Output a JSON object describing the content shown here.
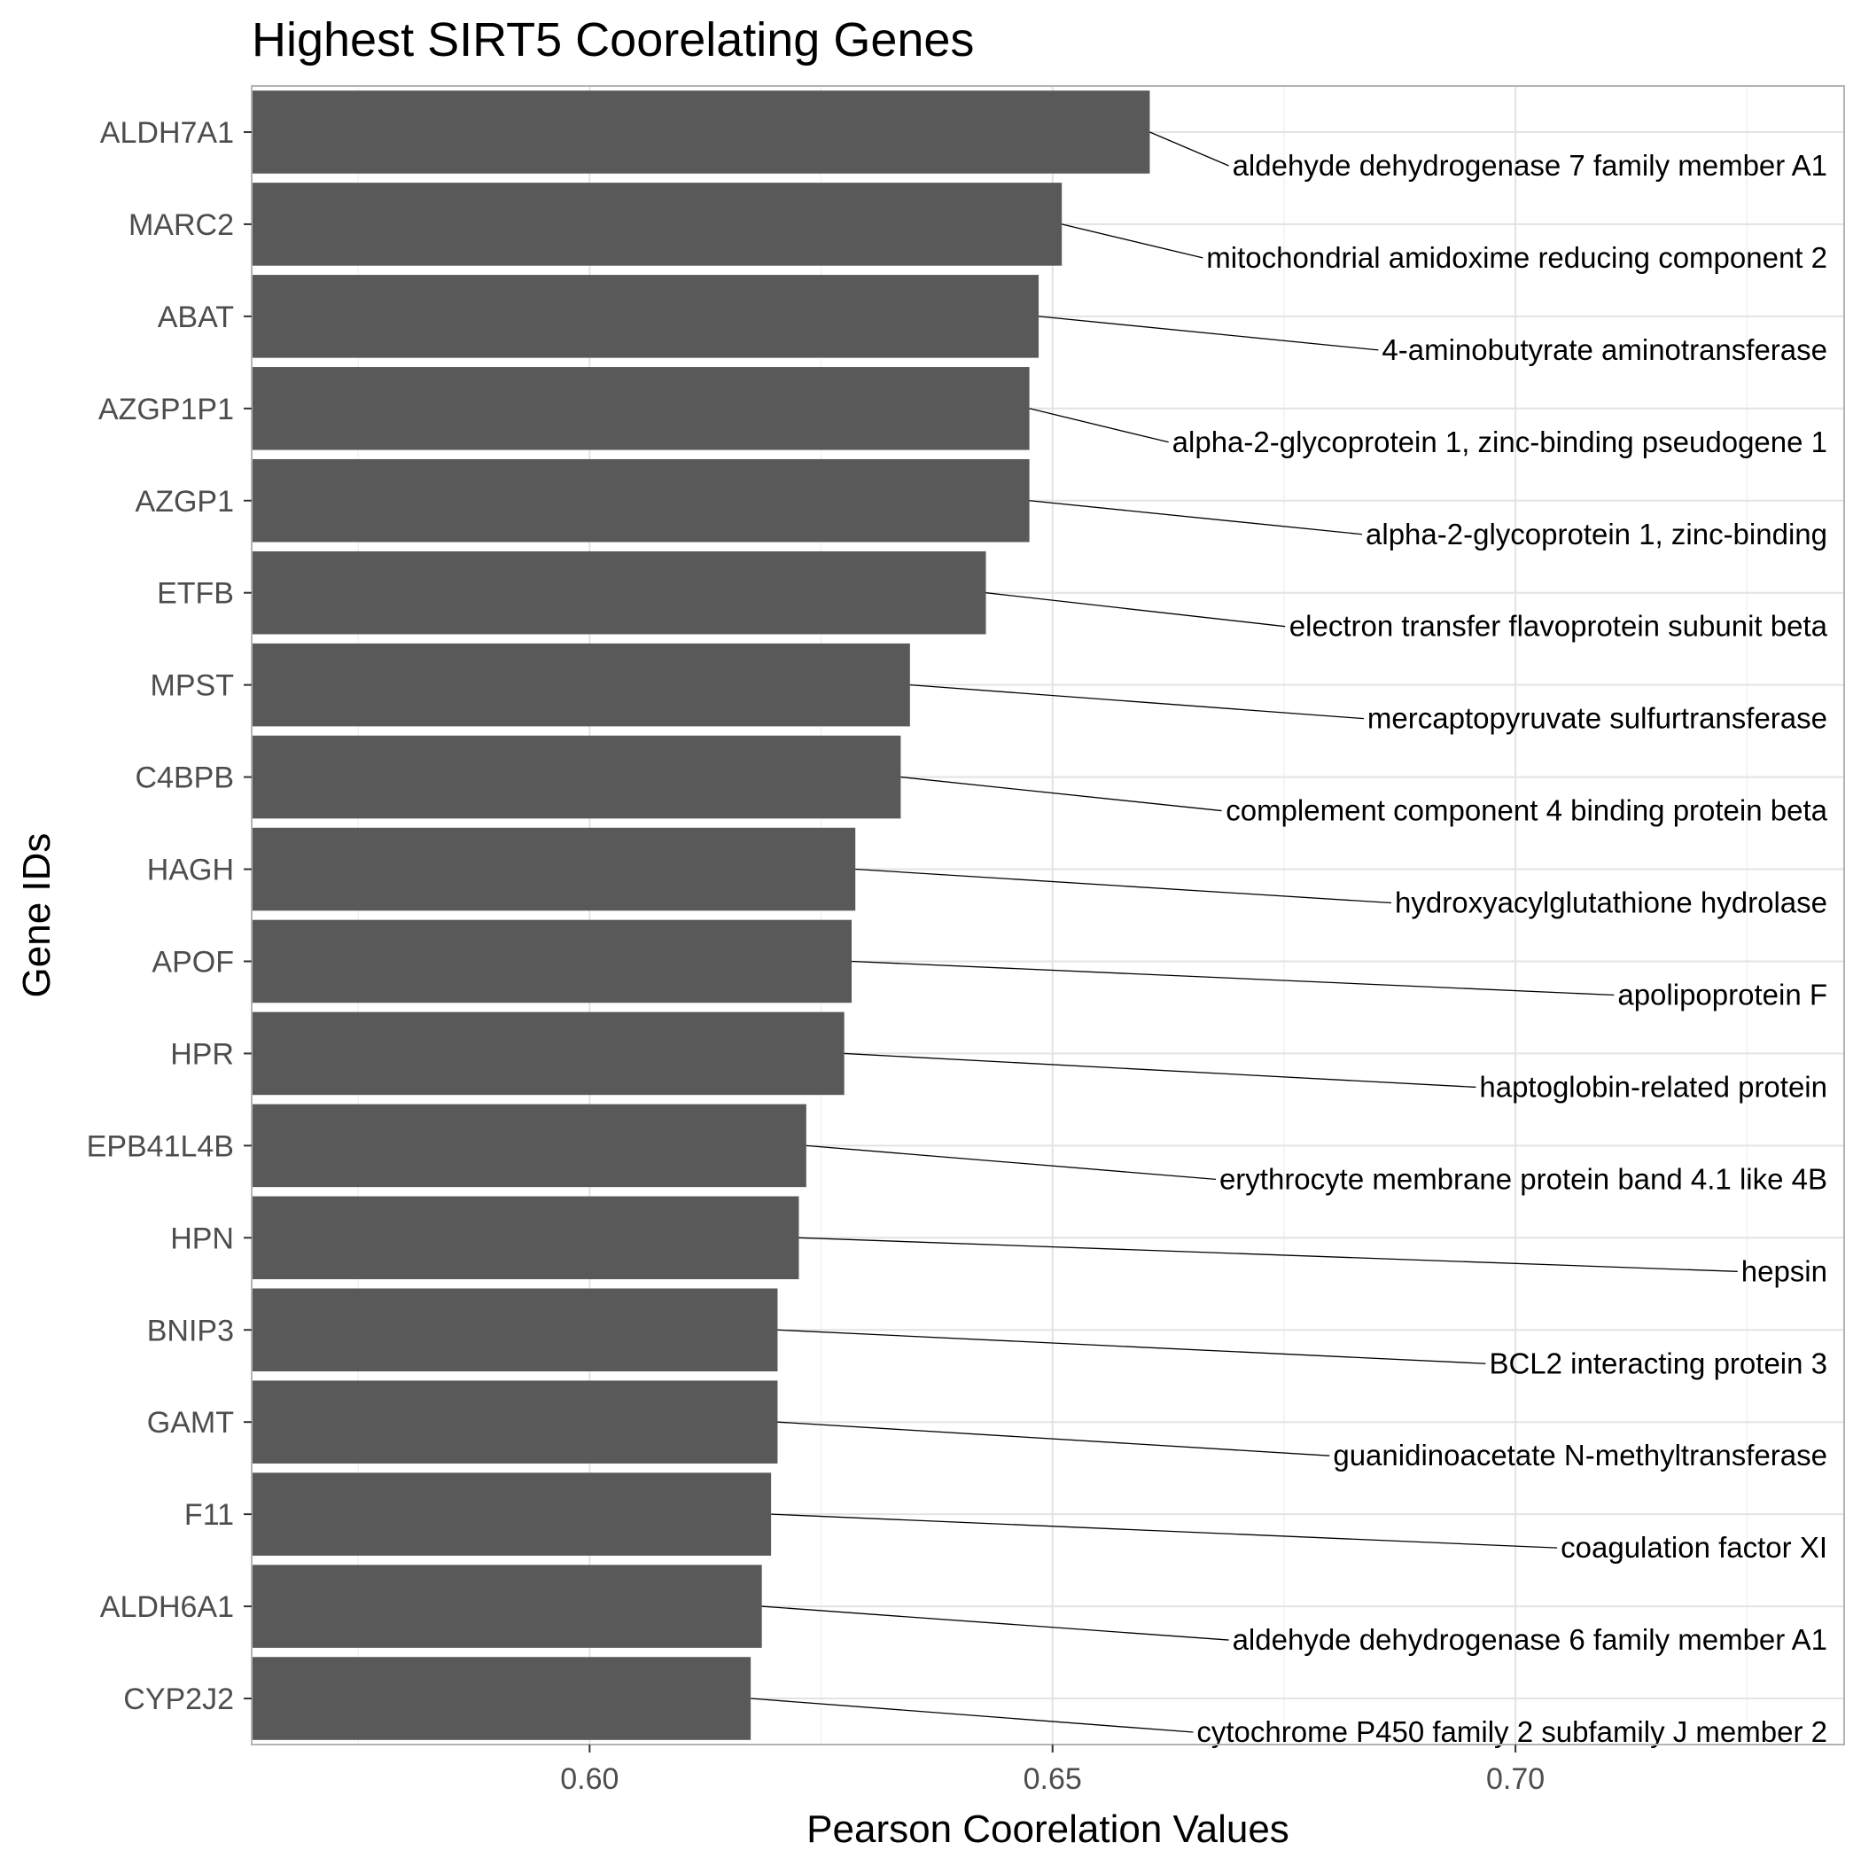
{
  "chart_data": {
    "type": "bar",
    "orientation": "horizontal",
    "title": "Highest SIRT5 Coorelating Genes",
    "xlabel": "Pearson Coorelation Values",
    "ylabel": "Gene IDs",
    "xlim": [
      0.5635,
      0.7355
    ],
    "xticks": [
      0.6,
      0.65,
      0.7
    ],
    "xtick_labels": [
      "0.60",
      "0.65",
      "0.70"
    ],
    "grid": true,
    "bar_color": "#595959",
    "categories": [
      "ALDH7A1",
      "MARC2",
      "ABAT",
      "AZGP1P1",
      "AZGP1",
      "ETFB",
      "MPST",
      "C4BPB",
      "HAGH",
      "APOF",
      "HPR",
      "EPB41L4B",
      "HPN",
      "BNIP3",
      "GAMT",
      "F11",
      "ALDH6A1",
      "CYP2J2"
    ],
    "values": [
      0.6605,
      0.651,
      0.6485,
      0.6475,
      0.6475,
      0.6428,
      0.6346,
      0.6336,
      0.6287,
      0.6283,
      0.6275,
      0.6234,
      0.6226,
      0.6203,
      0.6203,
      0.6196,
      0.6186,
      0.6174
    ],
    "annotations": [
      "aldehyde dehydrogenase 7 family member A1",
      "mitochondrial amidoxime reducing component 2",
      "4-aminobutyrate aminotransferase",
      "alpha-2-glycoprotein 1, zinc-binding pseudogene 1",
      "alpha-2-glycoprotein 1, zinc-binding",
      "electron transfer flavoprotein subunit beta",
      "mercaptopyruvate sulfurtransferase",
      "complement component 4 binding protein beta",
      "hydroxyacylglutathione hydrolase",
      "apolipoprotein F",
      "haptoglobin-related protein",
      "erythrocyte membrane protein band 4.1 like 4B",
      "hepsin",
      "BCL2 interacting protein 3",
      "guanidinoacetate N-methyltransferase",
      "coagulation factor XI",
      "aldehyde dehydrogenase 6 family member A1",
      "cytochrome P450 family 2 subfamily J member 2"
    ]
  }
}
